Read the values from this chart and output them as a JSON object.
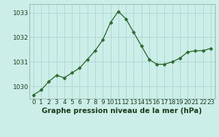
{
  "x": [
    0,
    1,
    2,
    3,
    4,
    5,
    6,
    7,
    8,
    9,
    10,
    11,
    12,
    13,
    14,
    15,
    16,
    17,
    18,
    19,
    20,
    21,
    22,
    23
  ],
  "y": [
    1029.65,
    1029.85,
    1030.2,
    1030.45,
    1030.35,
    1030.55,
    1030.75,
    1031.1,
    1031.45,
    1031.9,
    1032.6,
    1033.05,
    1032.75,
    1032.2,
    1031.65,
    1031.1,
    1030.9,
    1030.9,
    1031.0,
    1031.15,
    1031.4,
    1031.45,
    1031.45,
    1031.55
  ],
  "title": "Graphe pression niveau de la mer (hPa)",
  "ylim": [
    1029.5,
    1033.35
  ],
  "yticks": [
    1030,
    1031,
    1032,
    1033
  ],
  "xticks": [
    0,
    1,
    2,
    3,
    4,
    5,
    6,
    7,
    8,
    9,
    10,
    11,
    12,
    13,
    14,
    15,
    16,
    17,
    18,
    19,
    20,
    21,
    22,
    23
  ],
  "line_color": "#2d6a2d",
  "marker_color": "#2d6a2d",
  "bg_color": "#cceee8",
  "grid_color": "#aacccc",
  "title_fontsize": 7.5,
  "tick_fontsize": 6.5,
  "label_color": "#1a3a1a"
}
